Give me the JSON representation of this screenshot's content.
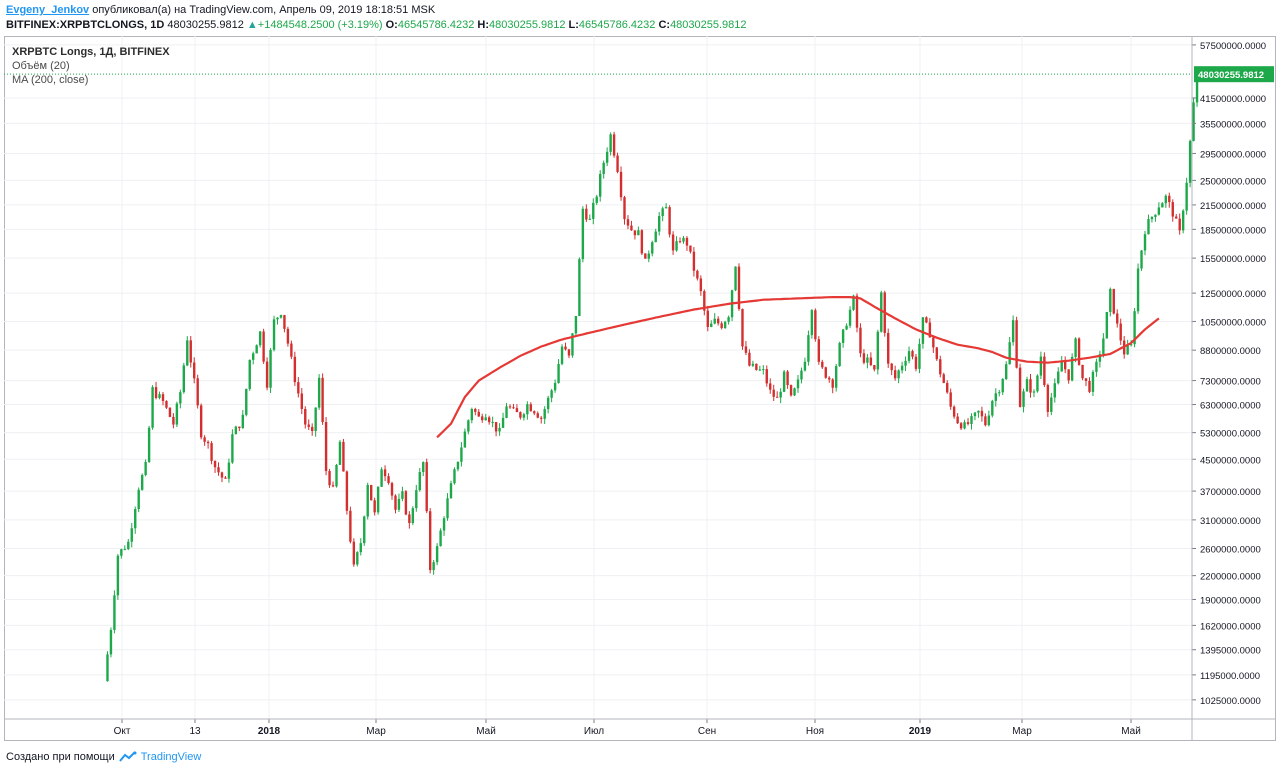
{
  "header": {
    "author": "Evgeny_Jenkov",
    "published_text": "опубликовал(а) на TradingView.com, Апрель 09, 2019 18:18:51 MSK",
    "symbol": "BITFINEX:XRPBTCLONGS, 1D",
    "price": "48030255.9812",
    "change": "+1484548.2500 (+3.19%)",
    "open_label": "O:",
    "open": "46545786.4232",
    "high_label": "H:",
    "high": "48030255.9812",
    "low_label": "L:",
    "low": "46545786.4232",
    "close_label": "C:",
    "close": "48030255.9812"
  },
  "legend": {
    "title": "XRPBTC Longs, 1Д, BITFINEX",
    "volume": "Объём (20)",
    "ma": "MA (200, close)"
  },
  "footer": {
    "created_with": "Создано при помощи",
    "brand": "TradingView"
  },
  "colors": {
    "up": "#1da84a",
    "down": "#d32f2f",
    "ma": "#e53935",
    "grid": "#eef0f3",
    "price_tag": "#1da84a"
  },
  "chart_data": {
    "type": "candlestick",
    "y_scale": "log",
    "ylim": [
      900000,
      60000000
    ],
    "current_price_label": "48030255.9812",
    "y_ticks": [
      "57500000.0000",
      "41500000.0000",
      "35500000.0000",
      "29500000.0000",
      "25000000.0000",
      "21500000.0000",
      "18500000.0000",
      "15500000.0000",
      "12500000.0000",
      "10500000.0000",
      "8800000.0000",
      "7300000.0000",
      "6300000.0000",
      "5300000.0000",
      "4500000.0000",
      "3700000.0000",
      "3100000.0000",
      "2600000.0000",
      "2200000.0000",
      "1900000.0000",
      "1620000.0000",
      "1395000.0000",
      "1195000.0000",
      "1025000.0000"
    ],
    "x_labels": [
      "Окт",
      "13",
      "2018",
      "Мар",
      "Май",
      "Июл",
      "Сен",
      "Ноя",
      "2019",
      "Мар",
      "Май"
    ],
    "price_path": [
      [
        0,
        1150000
      ],
      [
        2,
        1600000
      ],
      [
        4,
        2500000
      ],
      [
        7,
        2700000
      ],
      [
        10,
        3800000
      ],
      [
        12,
        4300000
      ],
      [
        14,
        6900000
      ],
      [
        17,
        6400000
      ],
      [
        20,
        5600000
      ],
      [
        22,
        6800000
      ],
      [
        24,
        9500000
      ],
      [
        26,
        7200000
      ],
      [
        28,
        5300000
      ],
      [
        30,
        4900000
      ],
      [
        32,
        4300000
      ],
      [
        35,
        3900000
      ],
      [
        37,
        5200000
      ],
      [
        40,
        5800000
      ],
      [
        42,
        8300000
      ],
      [
        45,
        9800000
      ],
      [
        47,
        7200000
      ],
      [
        49,
        10500000
      ],
      [
        51,
        11200000
      ],
      [
        53,
        9200000
      ],
      [
        55,
        7400000
      ],
      [
        58,
        5600000
      ],
      [
        60,
        5200000
      ],
      [
        62,
        7400000
      ],
      [
        64,
        4200000
      ],
      [
        66,
        3700000
      ],
      [
        68,
        5000000
      ],
      [
        70,
        3300000
      ],
      [
        72,
        2300000
      ],
      [
        74,
        2700000
      ],
      [
        76,
        3900000
      ],
      [
        78,
        3200000
      ],
      [
        80,
        4300000
      ],
      [
        82,
        4000000
      ],
      [
        84,
        3300000
      ],
      [
        86,
        3600000
      ],
      [
        88,
        3000000
      ],
      [
        90,
        3800000
      ],
      [
        92,
        4400000
      ],
      [
        94,
        2300000
      ],
      [
        96,
        2600000
      ],
      [
        98,
        3200000
      ],
      [
        100,
        3800000
      ],
      [
        102,
        4500000
      ],
      [
        104,
        5300000
      ],
      [
        106,
        6200000
      ],
      [
        108,
        5800000
      ],
      [
        110,
        6000000
      ],
      [
        112,
        5600000
      ],
      [
        114,
        5300000
      ],
      [
        116,
        6300000
      ],
      [
        118,
        6000000
      ],
      [
        120,
        5900000
      ],
      [
        122,
        6300000
      ],
      [
        124,
        6100000
      ],
      [
        126,
        5800000
      ],
      [
        128,
        6500000
      ],
      [
        130,
        7300000
      ],
      [
        132,
        9000000
      ],
      [
        134,
        8400000
      ],
      [
        136,
        11000000
      ],
      [
        138,
        21000000
      ],
      [
        140,
        19500000
      ],
      [
        142,
        23000000
      ],
      [
        144,
        28000000
      ],
      [
        146,
        33000000
      ],
      [
        148,
        27000000
      ],
      [
        150,
        20000000
      ],
      [
        152,
        18500000
      ],
      [
        154,
        18000000
      ],
      [
        156,
        15000000
      ],
      [
        158,
        17500000
      ],
      [
        160,
        20000000
      ],
      [
        162,
        21000000
      ],
      [
        164,
        16000000
      ],
      [
        166,
        17500000
      ],
      [
        168,
        17000000
      ],
      [
        170,
        14500000
      ],
      [
        172,
        12500000
      ],
      [
        174,
        10000000
      ],
      [
        176,
        10500000
      ],
      [
        178,
        10300000
      ],
      [
        180,
        11000000
      ],
      [
        182,
        15000000
      ],
      [
        184,
        9000000
      ],
      [
        186,
        8000000
      ],
      [
        188,
        7800000
      ],
      [
        190,
        7700000
      ],
      [
        192,
        6800000
      ],
      [
        194,
        6500000
      ],
      [
        196,
        7500000
      ],
      [
        198,
        6500000
      ],
      [
        200,
        7200000
      ],
      [
        202,
        8400000
      ],
      [
        204,
        11600000
      ],
      [
        206,
        8000000
      ],
      [
        208,
        7600000
      ],
      [
        210,
        7200000
      ],
      [
        212,
        9000000
      ],
      [
        214,
        10500000
      ],
      [
        216,
        12000000
      ],
      [
        218,
        8500000
      ],
      [
        220,
        8200000
      ],
      [
        222,
        7700000
      ],
      [
        224,
        12500000
      ],
      [
        226,
        8000000
      ],
      [
        228,
        7400000
      ],
      [
        230,
        8100000
      ],
      [
        232,
        8800000
      ],
      [
        234,
        8000000
      ],
      [
        236,
        10500000
      ],
      [
        238,
        9800000
      ],
      [
        240,
        8200000
      ],
      [
        242,
        7200000
      ],
      [
        244,
        6200000
      ],
      [
        246,
        5700000
      ],
      [
        248,
        5500000
      ],
      [
        250,
        5700000
      ],
      [
        252,
        6000000
      ],
      [
        254,
        5600000
      ],
      [
        256,
        6500000
      ],
      [
        258,
        7000000
      ],
      [
        260,
        8000000
      ],
      [
        262,
        10500000
      ],
      [
        264,
        6300000
      ],
      [
        266,
        7200000
      ],
      [
        268,
        6700000
      ],
      [
        270,
        8500000
      ],
      [
        272,
        6200000
      ],
      [
        274,
        7000000
      ],
      [
        276,
        8200000
      ],
      [
        278,
        7500000
      ],
      [
        280,
        9200000
      ],
      [
        282,
        7400000
      ],
      [
        284,
        7000000
      ],
      [
        286,
        8000000
      ],
      [
        288,
        9500000
      ],
      [
        290,
        12500000
      ],
      [
        292,
        10200000
      ],
      [
        294,
        8700000
      ],
      [
        296,
        9000000
      ],
      [
        298,
        14500000
      ],
      [
        300,
        18500000
      ],
      [
        302,
        20000000
      ],
      [
        304,
        21500000
      ],
      [
        306,
        22500000
      ],
      [
        308,
        20500000
      ],
      [
        310,
        18000000
      ],
      [
        312,
        25000000
      ],
      [
        314,
        40000000
      ],
      [
        315,
        48030255
      ]
    ],
    "ma_path": [
      [
        96,
        5150000
      ],
      [
        100,
        5600000
      ],
      [
        104,
        6600000
      ],
      [
        108,
        7300000
      ],
      [
        114,
        7900000
      ],
      [
        120,
        8500000
      ],
      [
        126,
        9000000
      ],
      [
        132,
        9400000
      ],
      [
        140,
        9800000
      ],
      [
        150,
        10300000
      ],
      [
        160,
        10800000
      ],
      [
        170,
        11300000
      ],
      [
        180,
        11700000
      ],
      [
        190,
        12000000
      ],
      [
        200,
        12100000
      ],
      [
        210,
        12200000
      ],
      [
        215,
        12200000
      ],
      [
        218,
        12100000
      ],
      [
        222,
        11500000
      ],
      [
        228,
        10700000
      ],
      [
        234,
        10000000
      ],
      [
        240,
        9500000
      ],
      [
        246,
        9100000
      ],
      [
        252,
        8900000
      ],
      [
        256,
        8700000
      ],
      [
        260,
        8400000
      ],
      [
        266,
        8200000
      ],
      [
        272,
        8150000
      ],
      [
        278,
        8250000
      ],
      [
        284,
        8400000
      ],
      [
        290,
        8600000
      ],
      [
        296,
        9200000
      ],
      [
        300,
        10000000
      ],
      [
        304,
        10700000
      ]
    ]
  }
}
